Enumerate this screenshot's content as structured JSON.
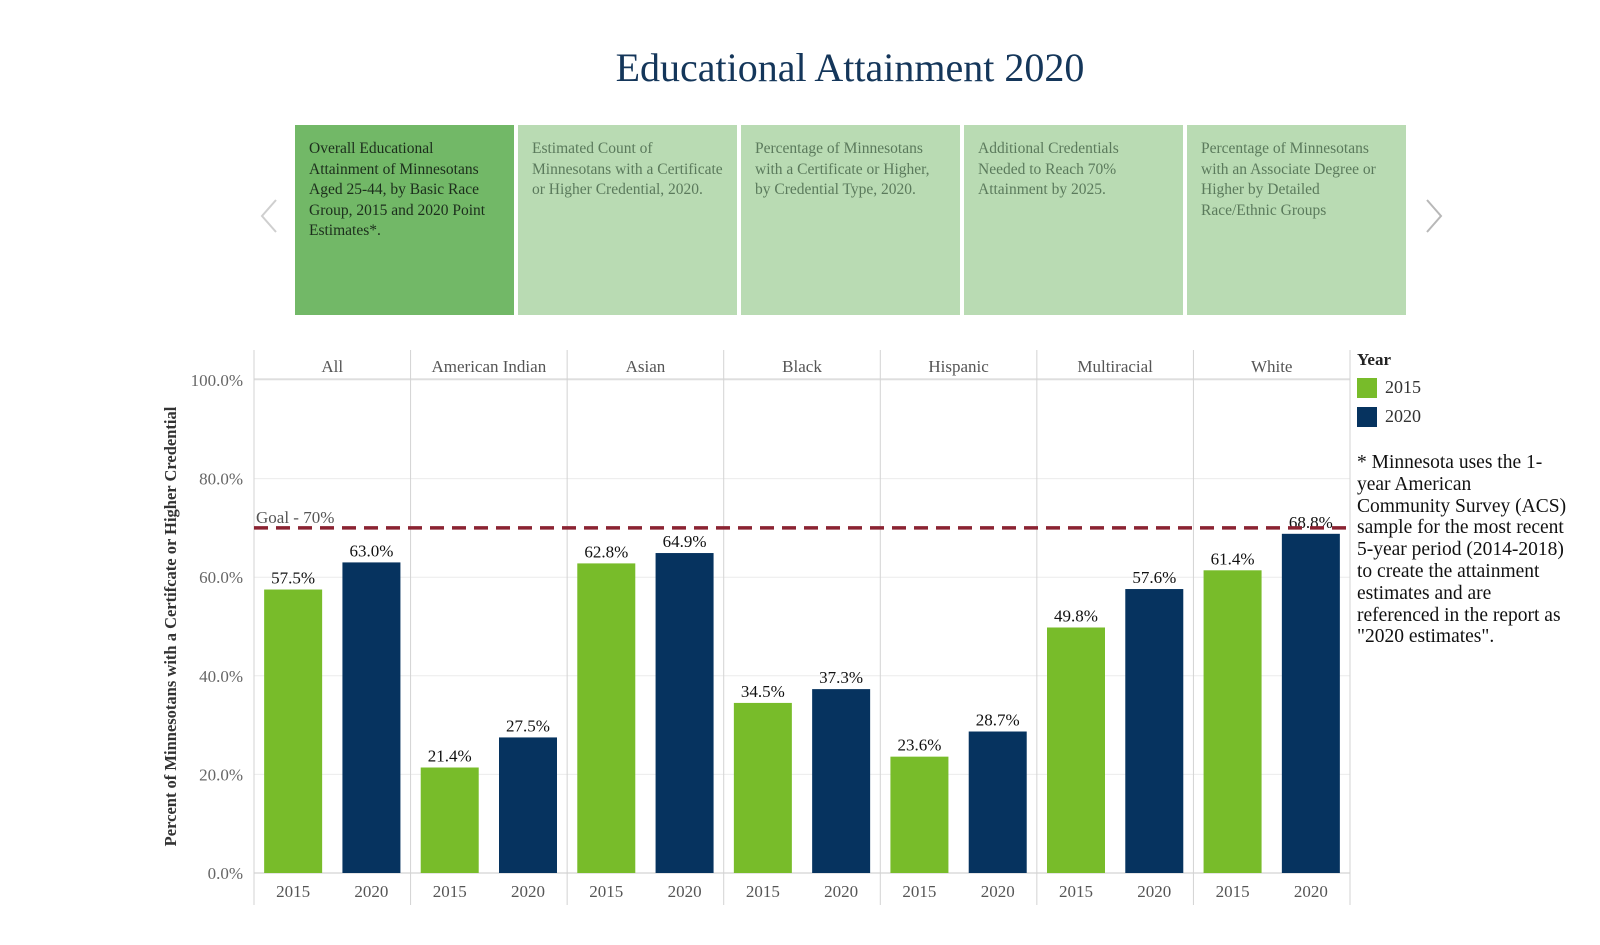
{
  "page": {
    "title": "Educational Attainment 2020"
  },
  "carousel": {
    "prev_icon": "chevron-left-icon",
    "next_icon": "chevron-right-icon",
    "cards": [
      {
        "label": "Overall Educational Attainment of Minnesotans Aged 25-44, by Basic Race Group, 2015 and 2020 Point Estimates*.",
        "active": true
      },
      {
        "label": "Estimated Count of Minnesotans with a Certificate or Higher Credential, 2020.",
        "active": false
      },
      {
        "label": "Percentage of Minnesotans with a Certificate or Higher, by Credential Type, 2020.",
        "active": false
      },
      {
        "label": "Additional Credentials Needed to Reach 70% Attainment by 2025.",
        "active": false
      },
      {
        "label": "Percentage of Minnesotans with an Associate Degree or Higher by Detailed Race/Ethnic Groups",
        "active": false
      }
    ]
  },
  "legend": {
    "title": "Year",
    "items": [
      {
        "label": "2015",
        "color": "#78bc2a"
      },
      {
        "label": "2020",
        "color": "#06335f"
      }
    ]
  },
  "footnote": "* Minnesota uses the 1-year American Community Survey (ACS) sample for the most recent 5-year period (2014-2018) to create the attainment estimates and are referenced in the report as \"2020 estimates\".",
  "chart_data": {
    "type": "bar",
    "title": "Educational Attainment 2020",
    "xlabel": "",
    "ylabel": "Percent of Minnesotans with a Certifcate or Higher Credential",
    "ylim": [
      0,
      100
    ],
    "yticks": [
      "0.0%",
      "20.0%",
      "40.0%",
      "60.0%",
      "80.0%",
      "100.0%"
    ],
    "ytick_values": [
      0,
      20,
      40,
      60,
      80,
      100
    ],
    "grid": true,
    "legend_position": "right",
    "categories": [
      "All",
      "American Indian",
      "Asian",
      "Black",
      "Hispanic",
      "Multiracial",
      "White"
    ],
    "x_sub": [
      "2015",
      "2020"
    ],
    "series": [
      {
        "name": "2015",
        "color": "#78bc2a",
        "values": [
          57.5,
          21.4,
          62.8,
          34.5,
          23.6,
          49.8,
          61.4
        ],
        "labels": [
          "57.5%",
          "21.4%",
          "62.8%",
          "34.5%",
          "23.6%",
          "49.8%",
          "61.4%"
        ]
      },
      {
        "name": "2020",
        "color": "#06335f",
        "values": [
          63.0,
          27.5,
          64.9,
          37.3,
          28.7,
          57.6,
          68.8
        ],
        "labels": [
          "63.0%",
          "27.5%",
          "64.9%",
          "37.3%",
          "28.7%",
          "57.6%",
          "68.8%"
        ]
      }
    ],
    "reference_line": {
      "label": "Goal - 70%",
      "value": 70,
      "color": "#8b2332",
      "style": "dashed"
    }
  }
}
